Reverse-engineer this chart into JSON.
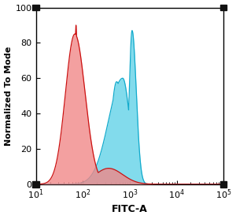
{
  "title": "",
  "xlabel": "FITC-A",
  "ylabel": "Normalized To Mode",
  "xlim": [
    10,
    100000
  ],
  "ylim": [
    0,
    100
  ],
  "yticks": [
    0,
    20,
    40,
    60,
    80,
    100
  ],
  "background_color": "#ffffff",
  "red_fill_color": "#f08888",
  "red_edge_color": "#cc1111",
  "cyan_fill_color": "#66d4e8",
  "cyan_edge_color": "#11aacc",
  "corner_marker_color": "#111111"
}
